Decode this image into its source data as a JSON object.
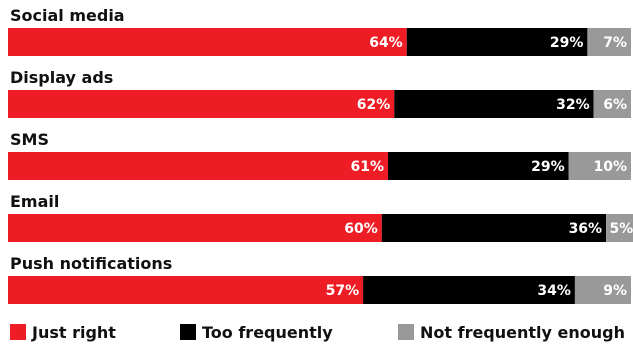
{
  "chart_data": {
    "type": "bar",
    "orientation": "horizontal",
    "stacked": true,
    "value_unit": "%",
    "categories": [
      "Social media",
      "Display ads",
      "SMS",
      "Email",
      "Push notifications"
    ],
    "series": [
      {
        "name": "Just right",
        "color": "#ee1c25",
        "values": [
          64,
          62,
          61,
          60,
          57
        ]
      },
      {
        "name": "Too frequently",
        "color": "#000000",
        "values": [
          29,
          32,
          29,
          36,
          34
        ]
      },
      {
        "name": "Not frequently enough",
        "color": "#999999",
        "values": [
          7,
          6,
          10,
          5,
          9
        ]
      }
    ],
    "xlim": [
      0,
      100
    ],
    "grid": false,
    "legend_position": "bottom"
  }
}
